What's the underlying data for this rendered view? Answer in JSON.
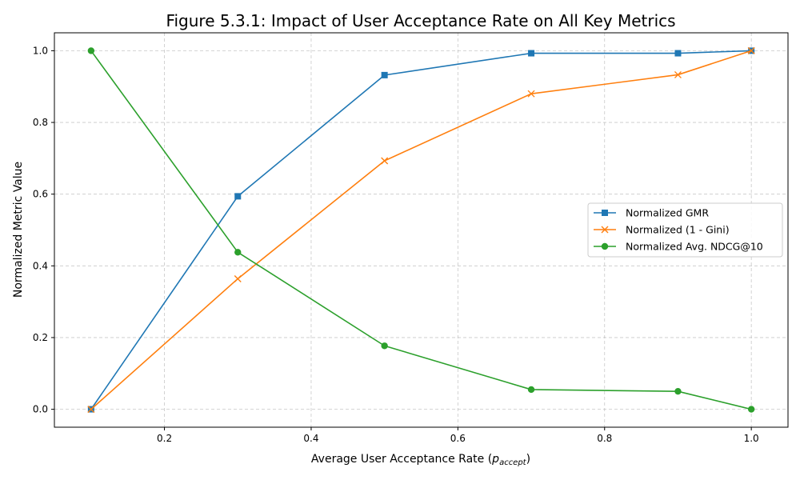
{
  "chart_data": {
    "type": "line",
    "title": "Figure 5.3.1: Impact of User Acceptance Rate on All Key Metrics",
    "xlabel_main": "Average User Acceptance Rate (",
    "xlabel_var": "p",
    "xlabel_sub": "accept",
    "xlabel_end": ")",
    "ylabel": "Normalized Metric Value",
    "x": [
      0.1,
      0.3,
      0.5,
      0.7,
      0.9,
      1.0
    ],
    "xlim": [
      0.05,
      1.05
    ],
    "ylim": [
      -0.05,
      1.05
    ],
    "xticks": [
      0.2,
      0.4,
      0.6,
      0.8,
      1.0
    ],
    "xtick_labels": [
      "0.2",
      "0.4",
      "0.6",
      "0.8",
      "1.0"
    ],
    "yticks": [
      0.0,
      0.2,
      0.4,
      0.6,
      0.8,
      1.0
    ],
    "ytick_labels": [
      "0.0",
      "0.2",
      "0.4",
      "0.6",
      "0.8",
      "1.0"
    ],
    "grid": true,
    "legend_position": "center-right",
    "series": [
      {
        "name": "Normalized GMR",
        "color": "#1f77b4",
        "marker": "square",
        "values": [
          0.0,
          0.594,
          0.932,
          0.993,
          0.993,
          1.0
        ]
      },
      {
        "name": "Normalized (1 - Gini)",
        "color": "#ff7f0e",
        "marker": "x",
        "values": [
          0.0,
          0.364,
          0.693,
          0.88,
          0.933,
          1.0
        ]
      },
      {
        "name": "Normalized Avg. NDCG@10",
        "color": "#2ca02c",
        "marker": "circle",
        "values": [
          1.0,
          0.438,
          0.177,
          0.055,
          0.05,
          0.0
        ]
      }
    ]
  }
}
